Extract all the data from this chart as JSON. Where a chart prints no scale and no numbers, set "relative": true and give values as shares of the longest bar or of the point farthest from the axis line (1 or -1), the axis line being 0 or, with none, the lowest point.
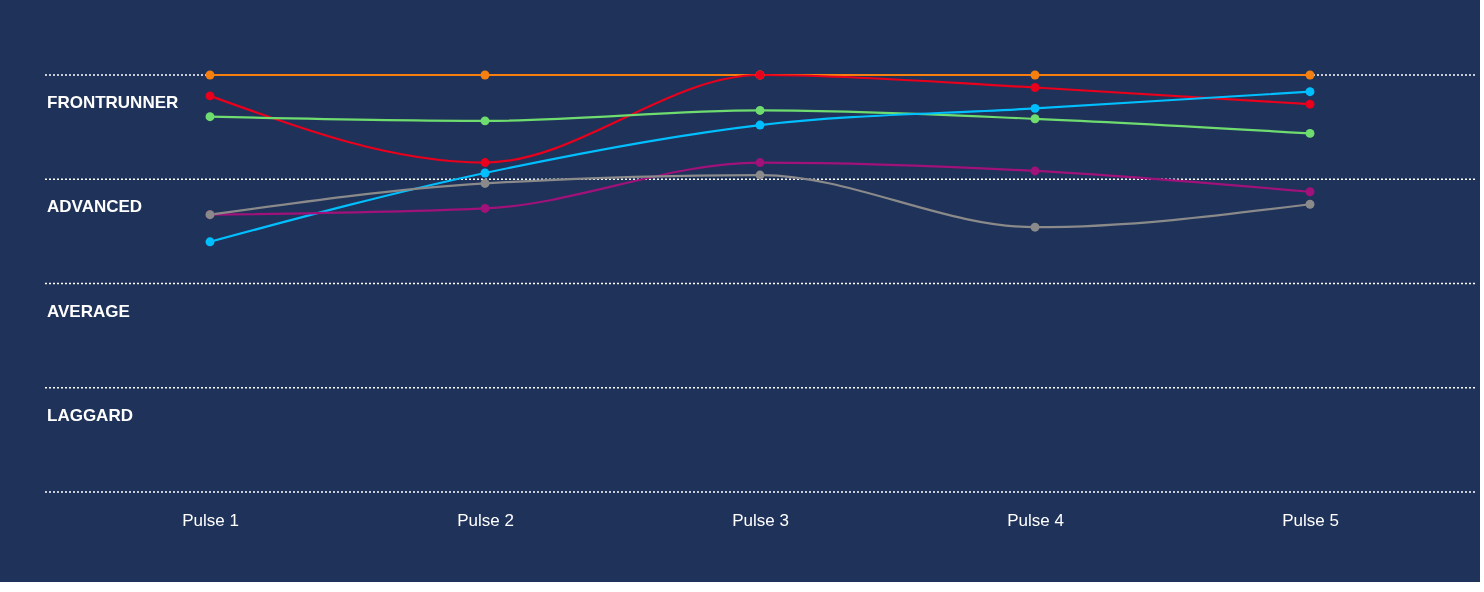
{
  "chart_data": {
    "type": "line",
    "relative": true,
    "categories": [
      "Pulse 1",
      "Pulse 2",
      "Pulse 3",
      "Pulse 4",
      "Pulse 5"
    ],
    "ref_lines": [
      {
        "axis": "y",
        "value": 1,
        "label": "FRONTRUNNER",
        "line_style": "dotted",
        "color": "#ffffff"
      },
      {
        "axis": "y",
        "value": 0.75,
        "label": "ADVANCED",
        "line_style": "dotted",
        "color": "#ffffff"
      },
      {
        "axis": "y",
        "value": 0.5,
        "label": "AVERAGE",
        "line_style": "dotted",
        "color": "#ffffff"
      },
      {
        "axis": "y",
        "value": 0.25,
        "label": "LAGGARD",
        "line_style": "dotted",
        "color": "#ffffff"
      },
      {
        "axis": "y",
        "value": 0,
        "line_style": "dotted",
        "color": "#ffffff"
      }
    ],
    "marker": "circle",
    "line_style": "solid",
    "series": [
      {
        "color": "#f57f0f",
        "values": [
          1,
          1,
          1,
          1,
          1
        ]
      },
      {
        "color": "#e8001c",
        "values": [
          0.95,
          0.79,
          1,
          0.97,
          0.93
        ]
      },
      {
        "color": "#6fdc6f",
        "values": [
          0.9,
          0.89,
          0.915,
          0.895,
          0.86
        ]
      },
      {
        "color": "#00bfff",
        "values": [
          0.6,
          0.765,
          0.88,
          0.92,
          0.96
        ]
      },
      {
        "color": "#a0127a",
        "values": [
          0.665,
          0.68,
          0.79,
          0.77,
          0.72
        ]
      },
      {
        "color": "#8a8a8a",
        "values": [
          0.665,
          0.74,
          0.76,
          0.635,
          0.69
        ]
      }
    ]
  }
}
